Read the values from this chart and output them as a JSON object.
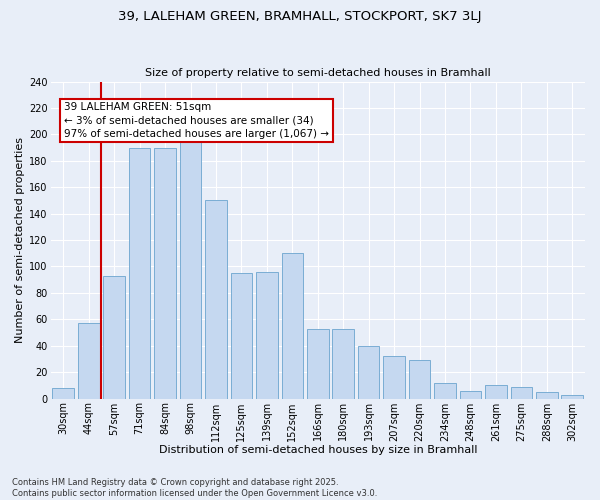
{
  "title1": "39, LALEHAM GREEN, BRAMHALL, STOCKPORT, SK7 3LJ",
  "title2": "Size of property relative to semi-detached houses in Bramhall",
  "xlabel": "Distribution of semi-detached houses by size in Bramhall",
  "ylabel": "Number of semi-detached properties",
  "categories": [
    "30sqm",
    "44sqm",
    "57sqm",
    "71sqm",
    "84sqm",
    "98sqm",
    "112sqm",
    "125sqm",
    "139sqm",
    "152sqm",
    "166sqm",
    "180sqm",
    "193sqm",
    "207sqm",
    "220sqm",
    "234sqm",
    "248sqm",
    "261sqm",
    "275sqm",
    "288sqm",
    "302sqm"
  ],
  "values": [
    8,
    57,
    93,
    190,
    190,
    200,
    150,
    95,
    96,
    110,
    53,
    53,
    40,
    32,
    29,
    12,
    6,
    10,
    9,
    5,
    3
  ],
  "bar_color": "#c5d8f0",
  "bar_edge_color": "#7aadd4",
  "vline_x": 1.5,
  "annotation_title": "39 LALEHAM GREEN: 51sqm",
  "annotation_line1": "← 3% of semi-detached houses are smaller (34)",
  "annotation_line2": "97% of semi-detached houses are larger (1,067) →",
  "annotation_box_color": "#cc0000",
  "footer1": "Contains HM Land Registry data © Crown copyright and database right 2025.",
  "footer2": "Contains public sector information licensed under the Open Government Licence v3.0.",
  "bg_color": "#e8eef8",
  "grid_color": "#ffffff",
  "ylim": [
    0,
    240
  ],
  "title1_fontsize": 9.5,
  "title2_fontsize": 8.0,
  "xlabel_fontsize": 8.0,
  "ylabel_fontsize": 8.0,
  "tick_fontsize": 7.0,
  "ann_fontsize": 7.5,
  "footer_fontsize": 6.0
}
